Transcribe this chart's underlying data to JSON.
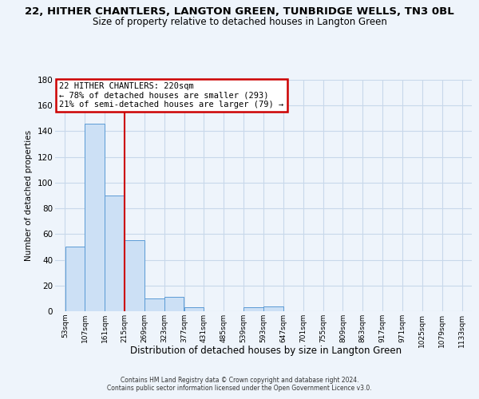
{
  "title": "22, HITHER CHANTLERS, LANGTON GREEN, TUNBRIDGE WELLS, TN3 0BL",
  "subtitle": "Size of property relative to detached houses in Langton Green",
  "xlabel": "Distribution of detached houses by size in Langton Green",
  "ylabel": "Number of detached properties",
  "footer_line1": "Contains HM Land Registry data © Crown copyright and database right 2024.",
  "footer_line2": "Contains public sector information licensed under the Open Government Licence v3.0.",
  "annotation_line1": "22 HITHER CHANTLERS: 220sqm",
  "annotation_line2": "← 78% of detached houses are smaller (293)",
  "annotation_line3": "21% of semi-detached houses are larger (79) →",
  "bar_edges": [
    53,
    107,
    161,
    215,
    269,
    323,
    377,
    431,
    485,
    539,
    593,
    647,
    701,
    755,
    809,
    863,
    917,
    971,
    1025,
    1079,
    1133
  ],
  "bar_heights": [
    50,
    146,
    90,
    55,
    10,
    11,
    3,
    0,
    0,
    3,
    4,
    0,
    0,
    0,
    0,
    0,
    0,
    0,
    0,
    0
  ],
  "property_line_x": 215,
  "ylim": [
    0,
    180
  ],
  "yticks": [
    0,
    20,
    40,
    60,
    80,
    100,
    120,
    140,
    160,
    180
  ],
  "bar_color": "#cce0f5",
  "bar_edge_color": "#5b9bd5",
  "line_color": "#cc0000",
  "annotation_box_color": "#cc0000",
  "bg_color": "#eef4fb",
  "grid_color": "#c8d8ea",
  "title_fontsize": 9.5,
  "subtitle_fontsize": 8.5
}
